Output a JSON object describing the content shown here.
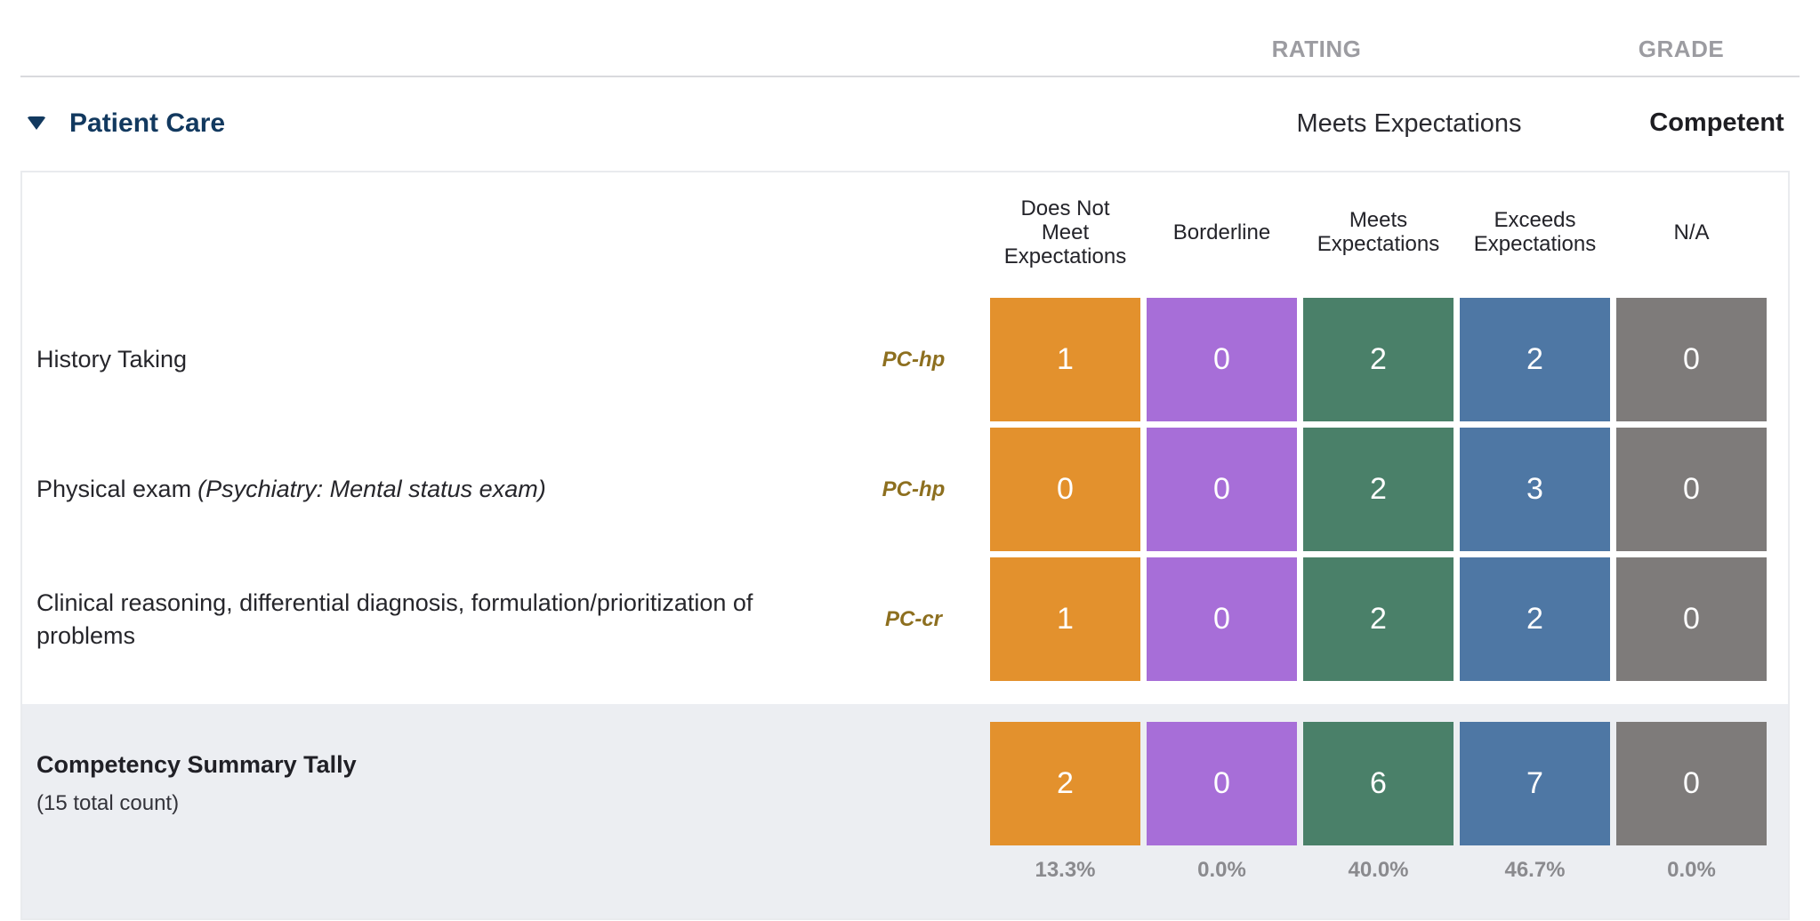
{
  "header": {
    "rating_label": "RATING",
    "grade_label": "GRADE"
  },
  "competency": {
    "name": "Patient Care",
    "rating": "Meets Expectations",
    "grade": "Competent"
  },
  "table": {
    "columns": [
      "Does Not Meet Expectations",
      "Borderline",
      "Meets Expectations",
      "Exceeds Expectations",
      "N/A"
    ],
    "rows": [
      {
        "label": "History Taking",
        "label_note": "",
        "tag": "PC-hp",
        "counts": [
          1,
          0,
          2,
          2,
          0
        ]
      },
      {
        "label": "Physical exam",
        "label_note": "(Psychiatry: Mental status exam)",
        "tag": "PC-hp",
        "counts": [
          0,
          0,
          2,
          3,
          0
        ]
      },
      {
        "label": "Clinical reasoning, differential diagnosis, formulation/prioritization of problems",
        "label_note": "",
        "tag": "PC-cr",
        "counts": [
          1,
          0,
          2,
          2,
          0
        ]
      }
    ],
    "summary": {
      "title": "Competency Summary Tally",
      "subtitle": "(15 total count)",
      "counts": [
        2,
        0,
        6,
        7,
        0
      ],
      "percentages": [
        "13.3%",
        "0.0%",
        "40.0%",
        "46.7%",
        "0.0%"
      ]
    }
  },
  "colors": {
    "rating_cells": [
      "#e3912d",
      "#a76ed8",
      "#4a8069",
      "#4e77a4",
      "#7e7b7a"
    ],
    "competency_accent": "#12395f",
    "tag_color": "#8d6f1f",
    "summary_background": "#eceef2"
  }
}
